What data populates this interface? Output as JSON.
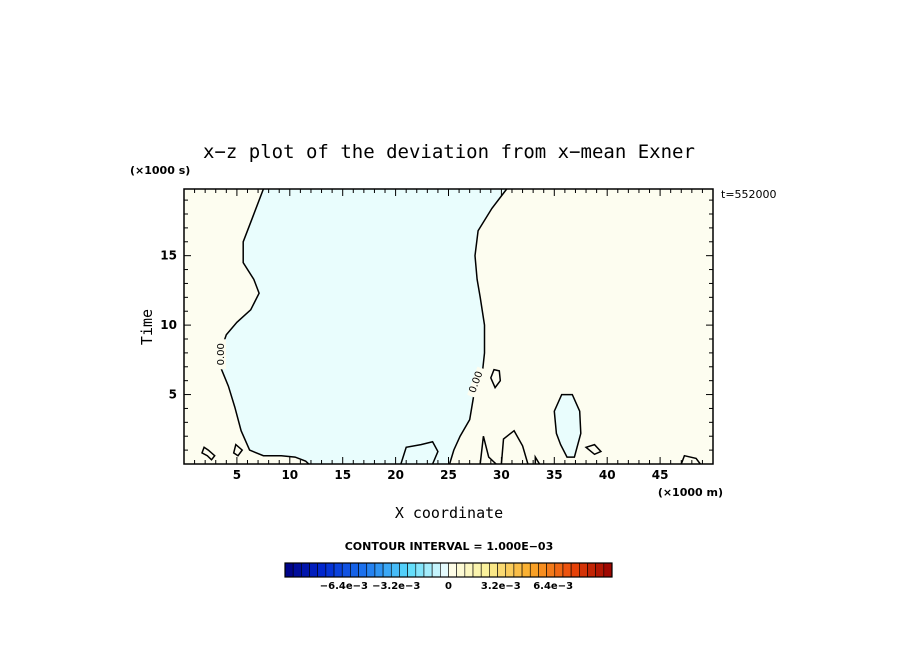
{
  "chart_data": {
    "type": "contour",
    "title": "x−z plot of the deviation from x−mean Exner",
    "xlabel": "X coordinate",
    "ylabel": "Time",
    "x_unit": "(×1000 m)",
    "y_unit": "(×1000 s)",
    "time_label": "t=552000",
    "xlim": [
      0,
      50
    ],
    "ylim": [
      0,
      19.8
    ],
    "x_ticks": [
      5,
      10,
      15,
      20,
      25,
      30,
      35,
      40,
      45
    ],
    "y_ticks": [
      5,
      10,
      15
    ],
    "contour_label": "0.00",
    "contour_interval_text": "CONTOUR INTERVAL = 1.000E−03",
    "colorbar": {
      "tick_labels": [
        "−6.4e−3",
        "−3.2e−3",
        "0",
        "3.2e−3",
        "6.4e−3"
      ],
      "tick_values": [
        -0.0064,
        -0.0032,
        0,
        0.0032,
        0.0064
      ],
      "range": [
        -0.01,
        0.01
      ],
      "levels": 40
    },
    "regions": [
      {
        "sign": "negative",
        "fill": "#e9fdfd"
      },
      {
        "sign": "positive",
        "fill": "#fdfdf0"
      }
    ],
    "zero_contour_main": {
      "left_boundary": [
        [
          7.5,
          19.8
        ],
        [
          6.5,
          17.8
        ],
        [
          5.6,
          16.0
        ],
        [
          5.6,
          14.5
        ],
        [
          6.6,
          13.3
        ],
        [
          7.1,
          12.3
        ],
        [
          6.3,
          11.1
        ],
        [
          5.0,
          10.2
        ],
        [
          4.0,
          9.3
        ],
        [
          3.5,
          8.2
        ],
        [
          3.5,
          6.9
        ],
        [
          4.2,
          5.6
        ],
        [
          4.8,
          4.1
        ],
        [
          5.4,
          2.4
        ],
        [
          6.2,
          1.0
        ],
        [
          7.5,
          0.6
        ],
        [
          9.2,
          0.6
        ],
        [
          10.5,
          0.5
        ],
        [
          11.5,
          0.2
        ],
        [
          11.8,
          0
        ]
      ],
      "right_boundary": [
        [
          30.5,
          19.8
        ],
        [
          29.1,
          18.4
        ],
        [
          27.8,
          16.8
        ],
        [
          27.5,
          15.0
        ],
        [
          27.7,
          13.3
        ],
        [
          28.0,
          12.0
        ],
        [
          28.4,
          10.0
        ],
        [
          28.4,
          8.0
        ],
        [
          28.2,
          6.6
        ],
        [
          27.4,
          5.0
        ],
        [
          27.0,
          3.2
        ],
        [
          26.1,
          2.0
        ],
        [
          25.5,
          1.0
        ],
        [
          25.1,
          0
        ]
      ]
    },
    "zero_contour_islands": [
      [
        [
          35.2,
          2.2
        ],
        [
          35.0,
          3.8
        ],
        [
          35.7,
          5.0
        ],
        [
          36.7,
          5.0
        ],
        [
          37.4,
          3.8
        ],
        [
          37.5,
          2.2
        ],
        [
          36.9,
          0.5
        ],
        [
          36.2,
          0.5
        ],
        [
          35.6,
          1.4
        ],
        [
          35.2,
          2.2
        ]
      ],
      [
        [
          29.0,
          6.2
        ],
        [
          29.3,
          6.8
        ],
        [
          29.8,
          6.7
        ],
        [
          29.9,
          6.0
        ],
        [
          29.4,
          5.5
        ],
        [
          29.0,
          6.2
        ]
      ],
      [
        [
          20.5,
          0
        ],
        [
          21.0,
          1.2
        ],
        [
          22.4,
          1.4
        ],
        [
          23.5,
          1.6
        ],
        [
          24.0,
          0.9
        ],
        [
          23.5,
          0
        ]
      ],
      [
        [
          28.0,
          0
        ],
        [
          28.3,
          2.0
        ],
        [
          28.8,
          0.5
        ],
        [
          29.5,
          0
        ]
      ],
      [
        [
          30.0,
          0
        ],
        [
          30.2,
          1.8
        ],
        [
          31.2,
          2.4
        ],
        [
          32.0,
          1.3
        ],
        [
          32.5,
          0
        ]
      ],
      [
        [
          33.2,
          0
        ],
        [
          33.2,
          0.5
        ],
        [
          33.6,
          0
        ]
      ],
      [
        [
          38.0,
          1.2
        ],
        [
          38.8,
          1.4
        ],
        [
          39.4,
          0.9
        ],
        [
          38.8,
          0.7
        ],
        [
          38.0,
          1.2
        ]
      ],
      [
        [
          47.0,
          0
        ],
        [
          47.3,
          0.6
        ],
        [
          48.4,
          0.4
        ],
        [
          48.8,
          0
        ]
      ],
      [
        [
          1.7,
          0.8
        ],
        [
          1.9,
          1.2
        ],
        [
          2.3,
          1.0
        ],
        [
          2.9,
          0.6
        ],
        [
          2.6,
          0.3
        ],
        [
          2.2,
          0.6
        ],
        [
          1.7,
          0.8
        ]
      ],
      [
        [
          4.7,
          0.8
        ],
        [
          4.9,
          1.4
        ],
        [
          5.5,
          1.0
        ],
        [
          5.1,
          0.6
        ],
        [
          4.7,
          0.8
        ]
      ]
    ]
  }
}
